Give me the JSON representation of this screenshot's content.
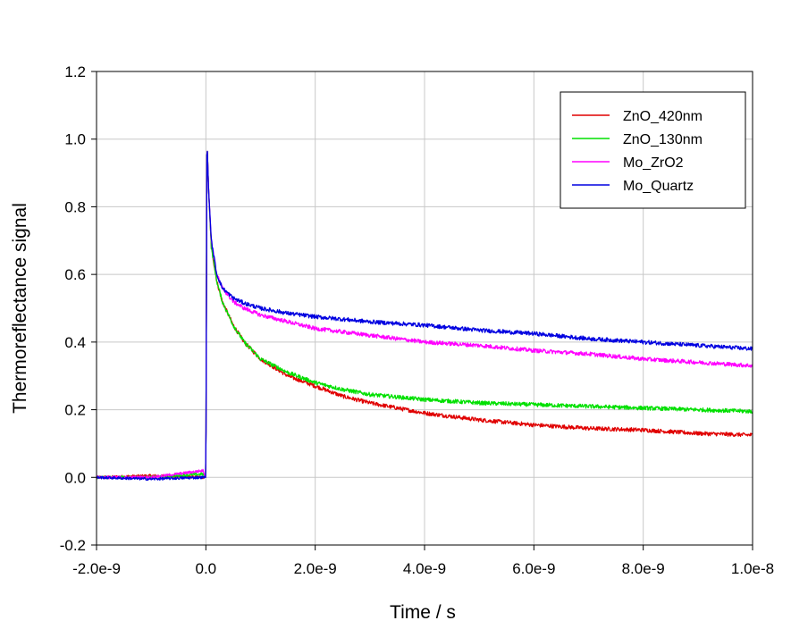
{
  "chart_data": {
    "type": "line",
    "title": "",
    "xlabel": "Time / s",
    "ylabel": "Thermoreflectance signal",
    "xlim": [
      -2e-09,
      1e-08
    ],
    "ylim": [
      -0.2,
      1.2
    ],
    "x_ticks": [
      -2e-09,
      0.0,
      2e-09,
      4e-09,
      6e-09,
      8e-09,
      1e-08
    ],
    "x_tick_labels": [
      "-2.0e-9",
      "0.0",
      "2.0e-9",
      "4.0e-9",
      "6.0e-9",
      "8.0e-9",
      "1.0e-8"
    ],
    "y_ticks": [
      -0.2,
      0.0,
      0.2,
      0.4,
      0.6,
      0.8,
      1.0,
      1.2
    ],
    "y_tick_labels": [
      "-0.2",
      "0.0",
      "0.2",
      "0.4",
      "0.6",
      "0.8",
      "1.0",
      "1.2"
    ],
    "grid": true,
    "legend_position": "top-right",
    "series": [
      {
        "name": "ZnO_420nm",
        "color": "#e00000",
        "x": [
          -2e-09,
          -1e-09,
          -5e-11,
          0.0,
          2e-11,
          5e-11,
          1e-10,
          2e-10,
          3e-10,
          5e-10,
          7e-10,
          1e-09,
          1.5e-09,
          2e-09,
          2.5e-09,
          3e-09,
          4e-09,
          5e-09,
          6e-09,
          7e-09,
          8e-09,
          9e-09,
          1e-08
        ],
        "y": [
          0.0,
          0.005,
          0.0,
          0.0,
          1.0,
          0.85,
          0.68,
          0.58,
          0.52,
          0.45,
          0.4,
          0.35,
          0.3,
          0.27,
          0.24,
          0.22,
          0.19,
          0.17,
          0.155,
          0.145,
          0.14,
          0.13,
          0.125
        ]
      },
      {
        "name": "ZnO_130nm",
        "color": "#00e000",
        "x": [
          -2e-09,
          -1e-09,
          -5e-11,
          0.0,
          2e-11,
          5e-11,
          1e-10,
          2e-10,
          3e-10,
          5e-10,
          7e-10,
          1e-09,
          1.5e-09,
          2e-09,
          2.5e-09,
          3e-09,
          4e-09,
          5e-09,
          6e-09,
          7e-09,
          8e-09,
          9e-09,
          1e-08
        ],
        "y": [
          0.0,
          0.0,
          0.01,
          0.0,
          1.0,
          0.85,
          0.68,
          0.58,
          0.52,
          0.45,
          0.4,
          0.35,
          0.31,
          0.28,
          0.26,
          0.245,
          0.23,
          0.22,
          0.215,
          0.21,
          0.205,
          0.2,
          0.195
        ]
      },
      {
        "name": "Mo_ZrO2",
        "color": "#ff00ff",
        "x": [
          -2e-09,
          -1e-09,
          -5e-11,
          0.0,
          2e-11,
          5e-11,
          1e-10,
          2e-10,
          3e-10,
          5e-10,
          7e-10,
          1e-09,
          1.5e-09,
          2e-09,
          3e-09,
          4e-09,
          5e-09,
          6e-09,
          7e-09,
          8e-09,
          9e-09,
          1e-08
        ],
        "y": [
          0.0,
          0.0,
          0.02,
          0.0,
          1.0,
          0.85,
          0.7,
          0.6,
          0.56,
          0.52,
          0.5,
          0.48,
          0.46,
          0.44,
          0.42,
          0.4,
          0.39,
          0.375,
          0.365,
          0.35,
          0.34,
          0.33
        ]
      },
      {
        "name": "Mo_Quartz",
        "color": "#0000e0",
        "x": [
          -2e-09,
          -1e-09,
          -5e-11,
          0.0,
          2e-11,
          5e-11,
          1e-10,
          2e-10,
          3e-10,
          5e-10,
          7e-10,
          1e-09,
          1.5e-09,
          2e-09,
          3e-09,
          4e-09,
          5e-09,
          6e-09,
          7e-09,
          8e-09,
          9e-09,
          1e-08
        ],
        "y": [
          0.0,
          -0.005,
          0.0,
          0.0,
          1.0,
          0.85,
          0.7,
          0.6,
          0.56,
          0.53,
          0.515,
          0.5,
          0.485,
          0.475,
          0.46,
          0.45,
          0.435,
          0.425,
          0.41,
          0.4,
          0.39,
          0.38
        ]
      }
    ]
  }
}
